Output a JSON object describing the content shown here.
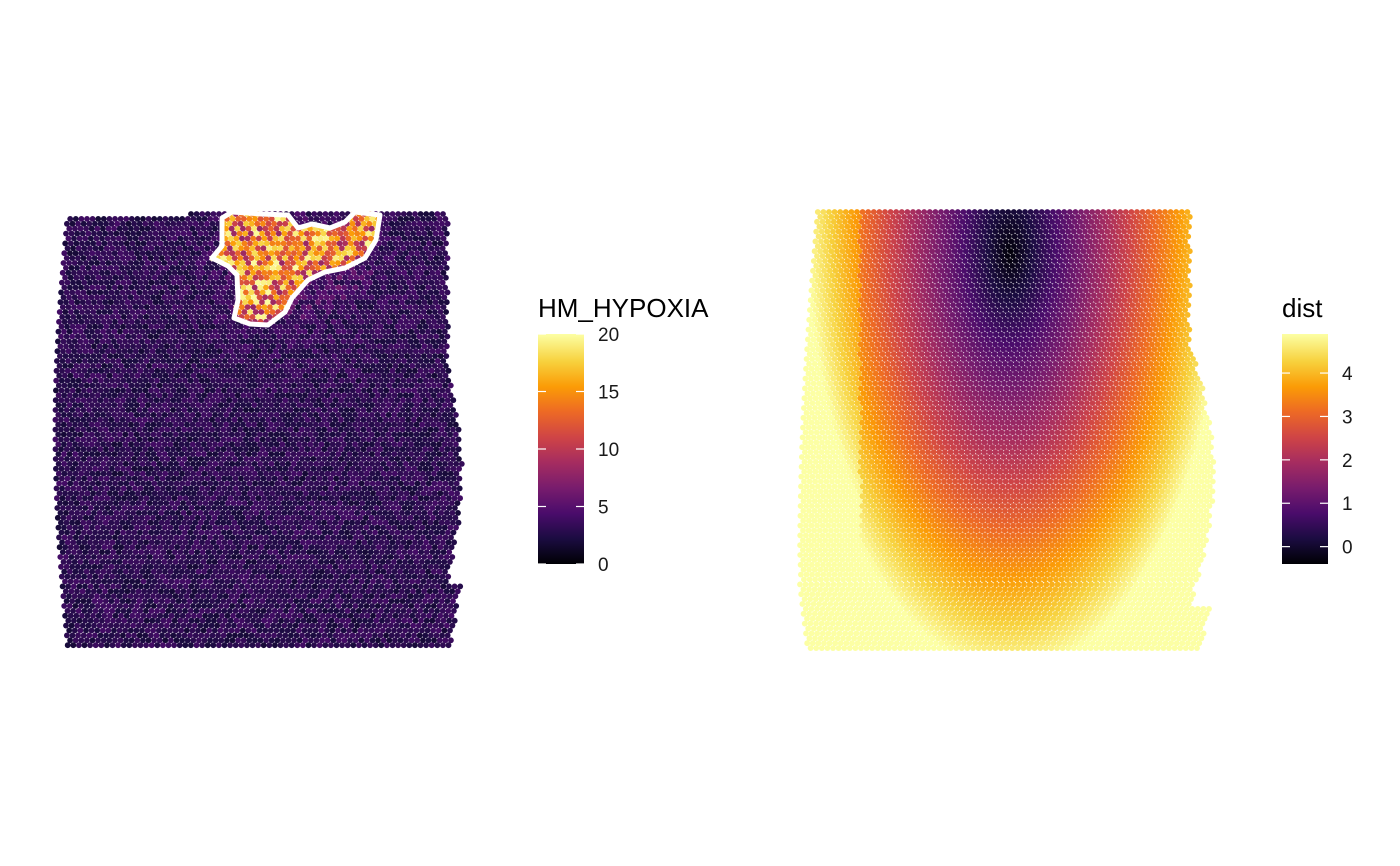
{
  "chart_data": [
    {
      "type": "heatmap",
      "subtype": "spatial-spot-map",
      "title": "",
      "xlabel": "",
      "ylabel": "",
      "grid": false,
      "legend": {
        "title": "HM_HYPOXIA",
        "placement": "right",
        "range": [
          0,
          20
        ],
        "ticks": [
          0,
          5,
          10,
          15,
          20
        ],
        "tick_labels": [
          "0",
          "5",
          "10",
          "15",
          "20"
        ]
      },
      "colormap": [
        "#000004",
        "#1b0c41",
        "#4a0c6b",
        "#781c6d",
        "#a52c60",
        "#cf4446",
        "#ed6925",
        "#fb9b06",
        "#f7d13d",
        "#fcffa4"
      ],
      "spot_value_summary": {
        "background": 3,
        "hotspot_region": "top-center",
        "hotspot_range": [
          8,
          20
        ]
      },
      "annotation": {
        "outline_color": "#ffffff",
        "description": "hotspot"
      }
    },
    {
      "type": "heatmap",
      "subtype": "spatial-spot-map",
      "title": "",
      "xlabel": "",
      "ylabel": "",
      "grid": false,
      "legend": {
        "title": "dist",
        "placement": "right",
        "range": [
          -0.4,
          4.9
        ],
        "ticks": [
          0,
          1,
          2,
          3,
          4
        ],
        "tick_labels": [
          "0",
          "1",
          "2",
          "3",
          "4"
        ]
      },
      "colormap": [
        "#000004",
        "#1b0c41",
        "#4a0c6b",
        "#781c6d",
        "#a52c60",
        "#cf4446",
        "#ed6925",
        "#fb9b06",
        "#f7d13d",
        "#fcffa4"
      ],
      "spot_value_summary": {
        "minimum_region": "top-center",
        "maximum_region": "bottom-left",
        "range": [
          -0.4,
          4.9
        ]
      }
    }
  ]
}
